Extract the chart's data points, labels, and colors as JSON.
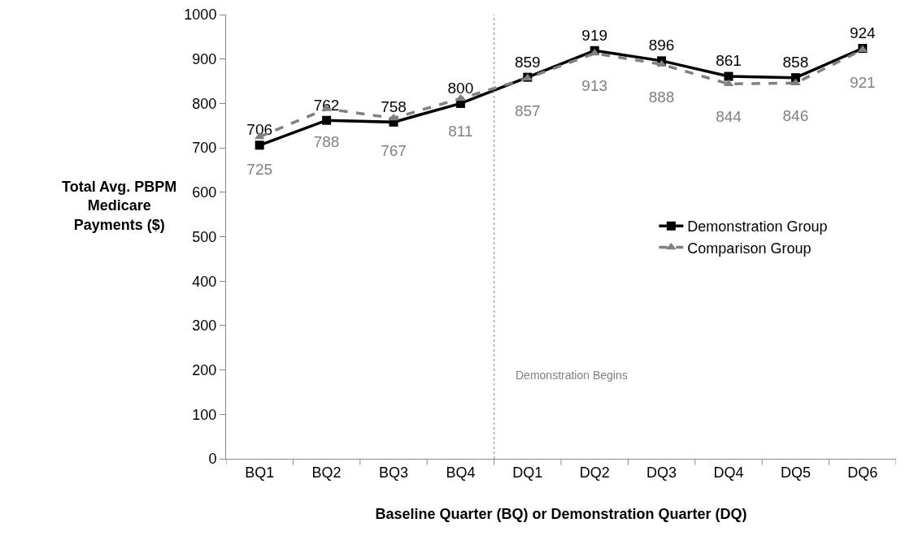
{
  "chart_data": {
    "type": "line",
    "categories": [
      "BQ1",
      "BQ2",
      "BQ3",
      "BQ4",
      "DQ1",
      "DQ2",
      "DQ3",
      "DQ4",
      "DQ5",
      "DQ6"
    ],
    "series": [
      {
        "name": "Demonstration Group",
        "color": "#000000",
        "marker": "square",
        "line_style": "solid",
        "values": [
          706,
          762,
          758,
          800,
          859,
          919,
          896,
          861,
          858,
          924
        ]
      },
      {
        "name": "Comparison Group",
        "color": "#808080",
        "marker": "triangle",
        "line_style": "dashed",
        "values": [
          725,
          788,
          767,
          811,
          857,
          913,
          888,
          844,
          846,
          921
        ]
      }
    ],
    "xlabel": "Baseline Quarter (BQ) or Demonstration Quarter (DQ)",
    "ylabel": "Total Avg. PBPM\nMedicare\nPayments ($)",
    "ylim": [
      0,
      1000
    ],
    "yticks": [
      0,
      100,
      200,
      300,
      400,
      500,
      600,
      700,
      800,
      900,
      1000
    ],
    "annotations": [
      "Demonstration Begins"
    ],
    "data_labels": true,
    "grid": false,
    "legend": "right"
  }
}
